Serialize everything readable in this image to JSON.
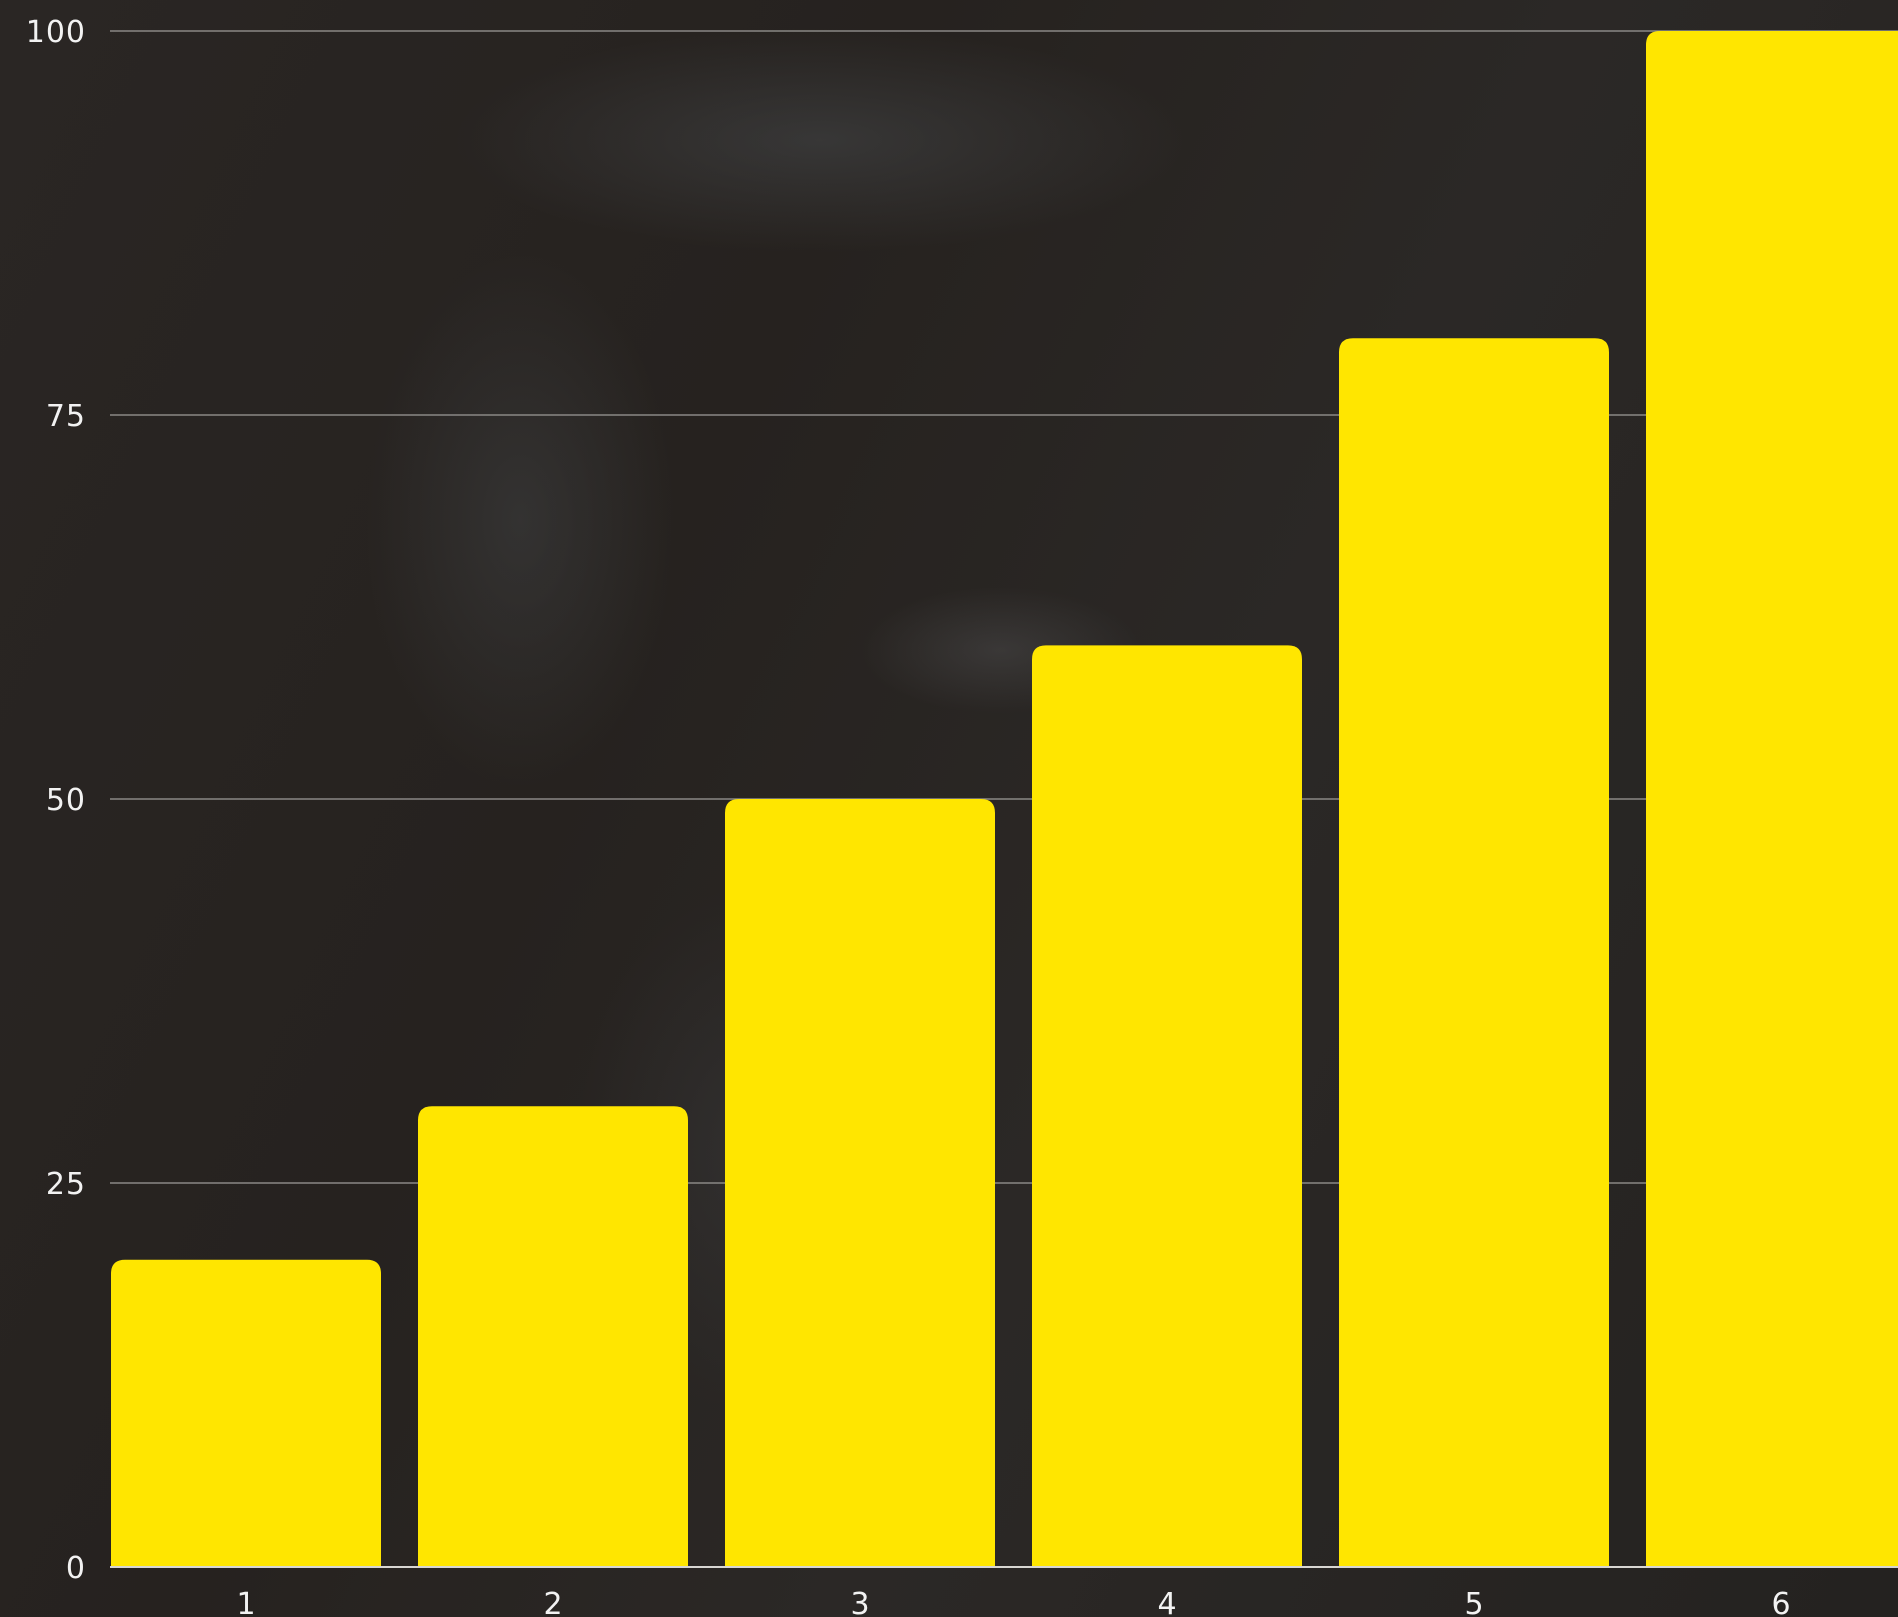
{
  "chart_data": {
    "type": "bar",
    "categories": [
      "1",
      "2",
      "3",
      "4",
      "5",
      "6"
    ],
    "values": [
      20,
      30,
      50,
      60,
      80,
      100
    ],
    "title": "",
    "xlabel": "",
    "ylabel": "",
    "ylim": [
      0,
      100
    ],
    "yticks": [
      0,
      25,
      50,
      75,
      100
    ],
    "grid": true,
    "legend": "none",
    "colors": {
      "bar": "#FFE600",
      "grid": "#8a8885",
      "axis": "#d8d6d2",
      "tick_text": "#f2f2f2"
    }
  }
}
